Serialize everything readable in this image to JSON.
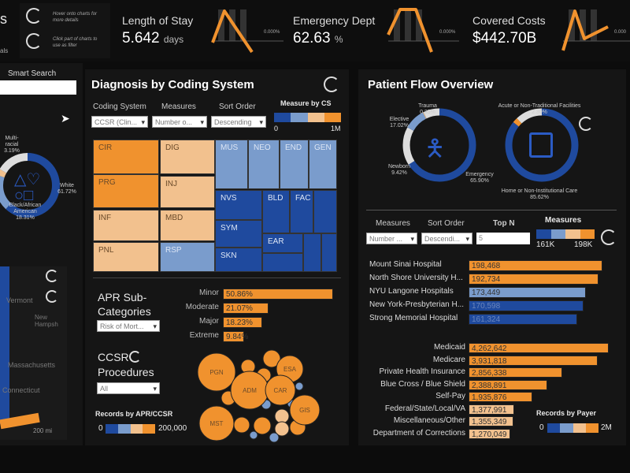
{
  "colors": {
    "orange": "#f0922e",
    "light_orange": "#f2c18e",
    "light_blue": "#7a9ccc",
    "blue": "#1f4a9e"
  },
  "header": {
    "left_fragment": "s",
    "left_fragment2": "als",
    "hints": [
      "Hover onto charts for more details",
      "Click part of charts to use as filter"
    ],
    "kpis": [
      {
        "title": "Length of Stay",
        "value": "5.642",
        "unit": "days",
        "spark_label": "0.000%"
      },
      {
        "title": "Emergency Dept",
        "value": "62.63",
        "unit": "%",
        "spark_label": "0.000%"
      },
      {
        "title": "Covered Costs",
        "value": "$442.70B",
        "unit": "",
        "spark_label": "0.000"
      }
    ]
  },
  "left": {
    "search_label": "Smart Search",
    "race_donut": {
      "segments": [
        {
          "name": "White",
          "pct": 61.72,
          "label": "61.72%"
        },
        {
          "name": "Black/African American",
          "pct": 18.31,
          "label": "18.31%"
        },
        {
          "name": "Multi-racial",
          "pct": 3.19,
          "label": "3.19%"
        }
      ]
    },
    "map_labels": [
      "Vermont",
      "New Hampsh",
      "Massachusetts",
      "Connecticut"
    ],
    "scale": "200 mi"
  },
  "diagnosis": {
    "title": "Diagnosis by Coding System",
    "filters": [
      {
        "label": "Coding System",
        "value": "CCSR (Clin..."
      },
      {
        "label": "Measures",
        "value": "Number o..."
      },
      {
        "label": "Sort Order",
        "value": "Descending"
      }
    ],
    "legend": {
      "title": "Measure by CS",
      "min": "0",
      "max": "1M"
    },
    "treemap": [
      "CIR",
      "PRG",
      "INF",
      "PNL",
      "DIG",
      "INJ",
      "MBD",
      "RSP",
      "MUS",
      "NEO",
      "END",
      "GEN",
      "NVS",
      "SYM",
      "SKN",
      "BLD",
      "FAC",
      "EAR"
    ],
    "apr": {
      "title": "APR Sub-Categories",
      "select": "Risk of Mort...",
      "bars": [
        {
          "label": "Minor",
          "value": 50.86,
          "text": "50.86%"
        },
        {
          "label": "Moderate",
          "value": 21.07,
          "text": "21.07%"
        },
        {
          "label": "Major",
          "value": 18.23,
          "text": "18.23%"
        },
        {
          "label": "Extreme",
          "value": 9.84,
          "text": "9.84%"
        }
      ]
    },
    "ccsr": {
      "title": "CCSR Procedures",
      "select": "All",
      "bubbles": [
        "PGN",
        "ADM",
        "ESA",
        "CAR",
        "GIS",
        "MST"
      ],
      "legend": {
        "title": "Records by APR/CCSR",
        "min": "0",
        "max": "200,000"
      }
    }
  },
  "flow": {
    "title": "Patient Flow Overview",
    "admission": [
      {
        "name": "Emergency",
        "pct": 65.9,
        "label": "65.90%"
      },
      {
        "name": "Elective",
        "pct": 17.02,
        "label": "17.02%"
      },
      {
        "name": "Newborn",
        "pct": 9.42,
        "label": "9.42%"
      },
      {
        "name": "Trauma",
        "pct": 0.35,
        "label": "0.35%"
      }
    ],
    "disposition": [
      {
        "name": "Home or Non-Institutional Care",
        "pct": 85.62,
        "label": "85.62%"
      },
      {
        "name": "Acute or Non-Traditional Facilities",
        "pct": 2.3,
        "label": "2.30%"
      }
    ],
    "filters": [
      {
        "label": "Measures",
        "value": "Number ..."
      },
      {
        "label": "Sort Order",
        "value": "Descendi..."
      },
      {
        "label": "Top N",
        "value": "5"
      }
    ],
    "legend": {
      "title": "Measures",
      "min": "161K",
      "max": "198K"
    },
    "hospitals": [
      {
        "name": "Mount Sinai Hospital",
        "value": 198468,
        "text": "198,468"
      },
      {
        "name": "North Shore University H...",
        "value": 192734,
        "text": "192,734"
      },
      {
        "name": "NYU Langone Hospitals",
        "value": 173449,
        "text": "173,449"
      },
      {
        "name": "New York-Presbyterian H...",
        "value": 170598,
        "text": "170,598"
      },
      {
        "name": "Strong Memorial Hospital",
        "value": 161324,
        "text": "161,324"
      }
    ],
    "payers": [
      {
        "name": "Medicaid",
        "value": 4262642,
        "text": "4,262,642"
      },
      {
        "name": "Medicare",
        "value": 3931818,
        "text": "3,931,818"
      },
      {
        "name": "Private Health Insurance",
        "value": 2856338,
        "text": "2,856,338"
      },
      {
        "name": "Blue Cross / Blue Shield",
        "value": 2388891,
        "text": "2,388,891"
      },
      {
        "name": "Self-Pay",
        "value": 1935876,
        "text": "1,935,876"
      },
      {
        "name": "Federal/State/Local/VA",
        "value": 1377991,
        "text": "1,377,991"
      },
      {
        "name": "Miscellaneous/Other",
        "value": 1355349,
        "text": "1,355,349"
      },
      {
        "name": "Department of Corrections",
        "value": 1270049,
        "text": "1,270,049"
      }
    ],
    "payer_legend": {
      "title": "Records by Payer",
      "min": "0",
      "max": "2M"
    }
  }
}
